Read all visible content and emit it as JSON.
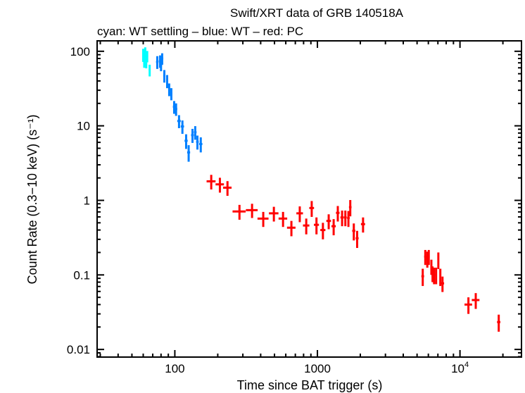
{
  "chart_data": {
    "type": "scatter",
    "title": "Swift/XRT data of GRB 140518A",
    "subtitle": "cyan: WT settling – blue: WT – red: PC",
    "xlabel": "Time since BAT trigger (s)",
    "ylabel": "Count Rate (0.3−10 keV) (s⁻¹)",
    "xscale": "log",
    "yscale": "log",
    "xlim": [
      28.5,
      27000
    ],
    "ylim": [
      0.0079,
      138
    ],
    "grid": false,
    "x_ticks": [
      {
        "value": 100,
        "label": "100"
      },
      {
        "value": 1000,
        "label": "1000"
      },
      {
        "value": 10000,
        "label": "10",
        "sup": "4"
      }
    ],
    "y_ticks": [
      {
        "value": 100,
        "label": "100"
      },
      {
        "value": 10,
        "label": "10"
      },
      {
        "value": 1,
        "label": "1"
      },
      {
        "value": 0.1,
        "label": "0.1"
      },
      {
        "value": 0.01,
        "label": "0.01"
      }
    ],
    "point_format": [
      "time_s",
      "time_err",
      "rate",
      "rate_err"
    ],
    "series": [
      {
        "mode": "WT settling",
        "color": "#00ffff",
        "points": [
          [
            60,
            1,
            90,
            18
          ],
          [
            61,
            1,
            78,
            18
          ],
          [
            62,
            1,
            98,
            15
          ],
          [
            63,
            1,
            74,
            15
          ],
          [
            64,
            1,
            86,
            15
          ],
          [
            66.6,
            1,
            56,
            10
          ]
        ]
      },
      {
        "mode": "WT",
        "color": "#0080ff",
        "points": [
          [
            75.3,
            1.5,
            72,
            14
          ],
          [
            78.8,
            1.5,
            74,
            14
          ],
          [
            81.5,
            1.5,
            80,
            14
          ],
          [
            80,
            1.5,
            66,
            12
          ],
          [
            84.4,
            1.5,
            47,
            9
          ],
          [
            88.3,
            1.5,
            40,
            8
          ],
          [
            91.3,
            1.5,
            31,
            6
          ],
          [
            94.5,
            1.5,
            27,
            5
          ],
          [
            98.9,
            2,
            18,
            3.5
          ],
          [
            102,
            2,
            16.8,
            3.2
          ],
          [
            107,
            3,
            11.6,
            2.3
          ],
          [
            113,
            3,
            9.8,
            2
          ],
          [
            120,
            3,
            6.3,
            1.4
          ],
          [
            125,
            3,
            4.4,
            1.1
          ],
          [
            133,
            3,
            7.5,
            1.6
          ],
          [
            139,
            3,
            8.2,
            1.7
          ],
          [
            144,
            3,
            6.1,
            1.3
          ],
          [
            152,
            4,
            5.7,
            1.3
          ]
        ]
      },
      {
        "mode": "PC",
        "color": "#ff0000",
        "points": [
          [
            180,
            13,
            1.8,
            0.4
          ],
          [
            207,
            14,
            1.64,
            0.37
          ],
          [
            234,
            16,
            1.48,
            0.33
          ],
          [
            284,
            30,
            0.71,
            0.16
          ],
          [
            348,
            33,
            0.74,
            0.16
          ],
          [
            417,
            37,
            0.57,
            0.13
          ],
          [
            495,
            38,
            0.67,
            0.15
          ],
          [
            574,
            40,
            0.57,
            0.13
          ],
          [
            657,
            45,
            0.43,
            0.1
          ],
          [
            752,
            40,
            0.67,
            0.16
          ],
          [
            835,
            43,
            0.46,
            0.11
          ],
          [
            912,
            35,
            0.79,
            0.19
          ],
          [
            985,
            40,
            0.47,
            0.12
          ],
          [
            1093,
            45,
            0.4,
            0.1
          ],
          [
            1200,
            45,
            0.53,
            0.12
          ],
          [
            1300,
            45,
            0.45,
            0.11
          ],
          [
            1390,
            40,
            0.68,
            0.16
          ],
          [
            1490,
            40,
            0.59,
            0.14
          ],
          [
            1570,
            35,
            0.59,
            0.14
          ],
          [
            1650,
            35,
            0.58,
            0.14
          ],
          [
            1700,
            35,
            0.81,
            0.2
          ],
          [
            1800,
            45,
            0.39,
            0.1
          ],
          [
            1900,
            45,
            0.31,
            0.08
          ],
          [
            2090,
            70,
            0.48,
            0.11
          ],
          [
            5480,
            120,
            0.096,
            0.025
          ],
          [
            5710,
            100,
            0.176,
            0.04
          ],
          [
            5900,
            100,
            0.165,
            0.04
          ],
          [
            6040,
            90,
            0.176,
            0.04
          ],
          [
            6300,
            100,
            0.13,
            0.03
          ],
          [
            6420,
            90,
            0.105,
            0.025
          ],
          [
            6580,
            90,
            0.1,
            0.025
          ],
          [
            6800,
            100,
            0.1,
            0.025
          ],
          [
            7050,
            90,
            0.16,
            0.04
          ],
          [
            7280,
            100,
            0.096,
            0.025
          ],
          [
            7540,
            200,
            0.077,
            0.018
          ],
          [
            11460,
            700,
            0.04,
            0.01
          ],
          [
            12900,
            800,
            0.046,
            0.011
          ],
          [
            18700,
            500,
            0.0233,
            0.006
          ]
        ]
      }
    ]
  }
}
